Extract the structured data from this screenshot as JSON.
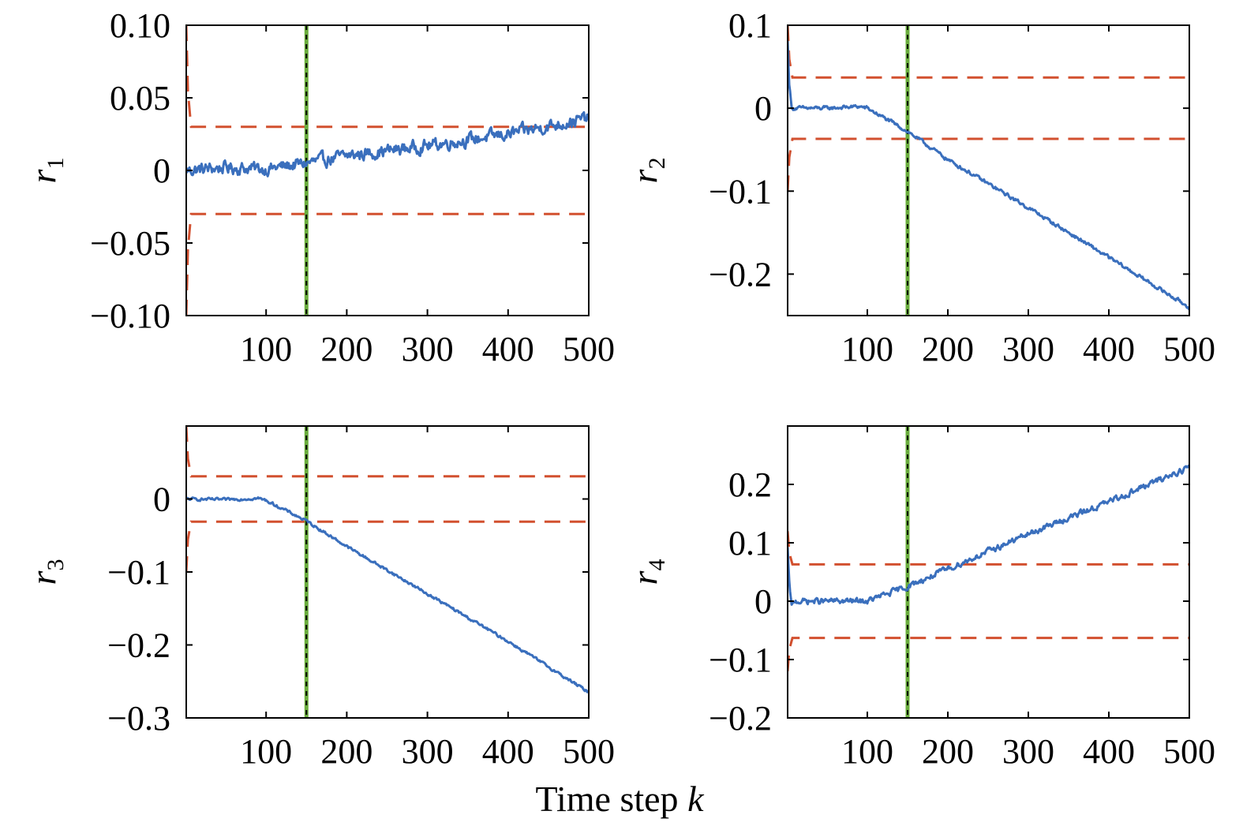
{
  "figure": {
    "xlabel": "Time step",
    "xlabel_var": "k"
  },
  "chart_data": [
    {
      "type": "line",
      "ylabel": "r",
      "ylabel_sub": "1",
      "xlim": [
        1,
        500
      ],
      "ylim": [
        -0.1,
        0.1
      ],
      "xticks": [
        100,
        200,
        300,
        400,
        500
      ],
      "yticks": [
        -0.1,
        -0.05,
        0,
        0.05,
        0.1
      ],
      "yticklabels": [
        "−0.10",
        "−0.05",
        "0",
        "0.05",
        "0.10"
      ],
      "residual": {
        "x": [
          1,
          50,
          100,
          150,
          200,
          300,
          400,
          500
        ],
        "y": [
          0,
          0.002,
          0.001,
          0.005,
          0.01,
          0.017,
          0.025,
          0.036
        ],
        "noise": 0.0035
      },
      "threshold": {
        "start": 0.1,
        "initial_steps": 6,
        "value": 0.03
      },
      "fault_time": 150,
      "colors": {
        "residual": "#3a6fbd",
        "threshold": "#d2502f",
        "fault": "#6aad3d"
      }
    },
    {
      "type": "line",
      "ylabel": "r",
      "ylabel_sub": "2",
      "xlim": [
        1,
        500
      ],
      "ylim": [
        -0.25,
        0.1
      ],
      "xticks": [
        100,
        200,
        300,
        400,
        500
      ],
      "yticks": [
        -0.2,
        -0.1,
        0,
        0.1
      ],
      "yticklabels": [
        "−0.2",
        "−0.1",
        "0",
        "0.1"
      ],
      "residual": {
        "x": [
          1,
          3,
          6,
          10,
          50,
          90,
          100,
          150,
          200,
          300,
          400,
          500
        ],
        "y": [
          0.08,
          0.03,
          0.0,
          0.0,
          0.0,
          0.002,
          0.0,
          -0.028,
          -0.062,
          -0.12,
          -0.18,
          -0.24
        ],
        "noise": 0.0018
      },
      "threshold": {
        "start": 0.1,
        "initial_steps": 6,
        "value": 0.037
      },
      "fault_time": 150,
      "colors": {
        "residual": "#3a6fbd",
        "threshold": "#d2502f",
        "fault": "#6aad3d"
      }
    },
    {
      "type": "line",
      "ylabel": "r",
      "ylabel_sub": "3",
      "xlim": [
        1,
        500
      ],
      "ylim": [
        -0.3,
        0.1
      ],
      "xticks": [
        100,
        200,
        300,
        400,
        500
      ],
      "yticks": [
        -0.3,
        -0.2,
        -0.1,
        0
      ],
      "yticklabels": [
        "−0.3",
        "−0.2",
        "−0.1",
        "0"
      ],
      "residual": {
        "x": [
          1,
          50,
          90,
          100,
          150,
          200,
          300,
          400,
          500
        ],
        "y": [
          0.0,
          -0.001,
          0.001,
          -0.002,
          -0.03,
          -0.065,
          -0.13,
          -0.195,
          -0.265
        ],
        "noise": 0.0015
      },
      "threshold": {
        "start": 0.1,
        "initial_steps": 6,
        "value": 0.031
      },
      "fault_time": 150,
      "colors": {
        "residual": "#3a6fbd",
        "threshold": "#d2502f",
        "fault": "#6aad3d"
      }
    },
    {
      "type": "line",
      "ylabel": "r",
      "ylabel_sub": "4",
      "xlim": [
        1,
        500
      ],
      "ylim": [
        -0.2,
        0.3
      ],
      "xticks": [
        100,
        200,
        300,
        400,
        500
      ],
      "yticks": [
        -0.2,
        -0.1,
        0,
        0.1,
        0.2
      ],
      "yticklabels": [
        "−0.2",
        "−0.1",
        "0",
        "0.1",
        "0.2"
      ],
      "residual": {
        "x": [
          1,
          3,
          6,
          10,
          50,
          100,
          150,
          200,
          300,
          400,
          500
        ],
        "y": [
          0.09,
          0.03,
          -0.01,
          0.0,
          0.0,
          0.0,
          0.025,
          0.055,
          0.115,
          0.17,
          0.23
        ],
        "noise": 0.004
      },
      "threshold": {
        "start": 0.12,
        "initial_steps": 6,
        "value": 0.063
      },
      "fault_time": 150,
      "colors": {
        "residual": "#3a6fbd",
        "threshold": "#d2502f",
        "fault": "#6aad3d"
      }
    }
  ]
}
